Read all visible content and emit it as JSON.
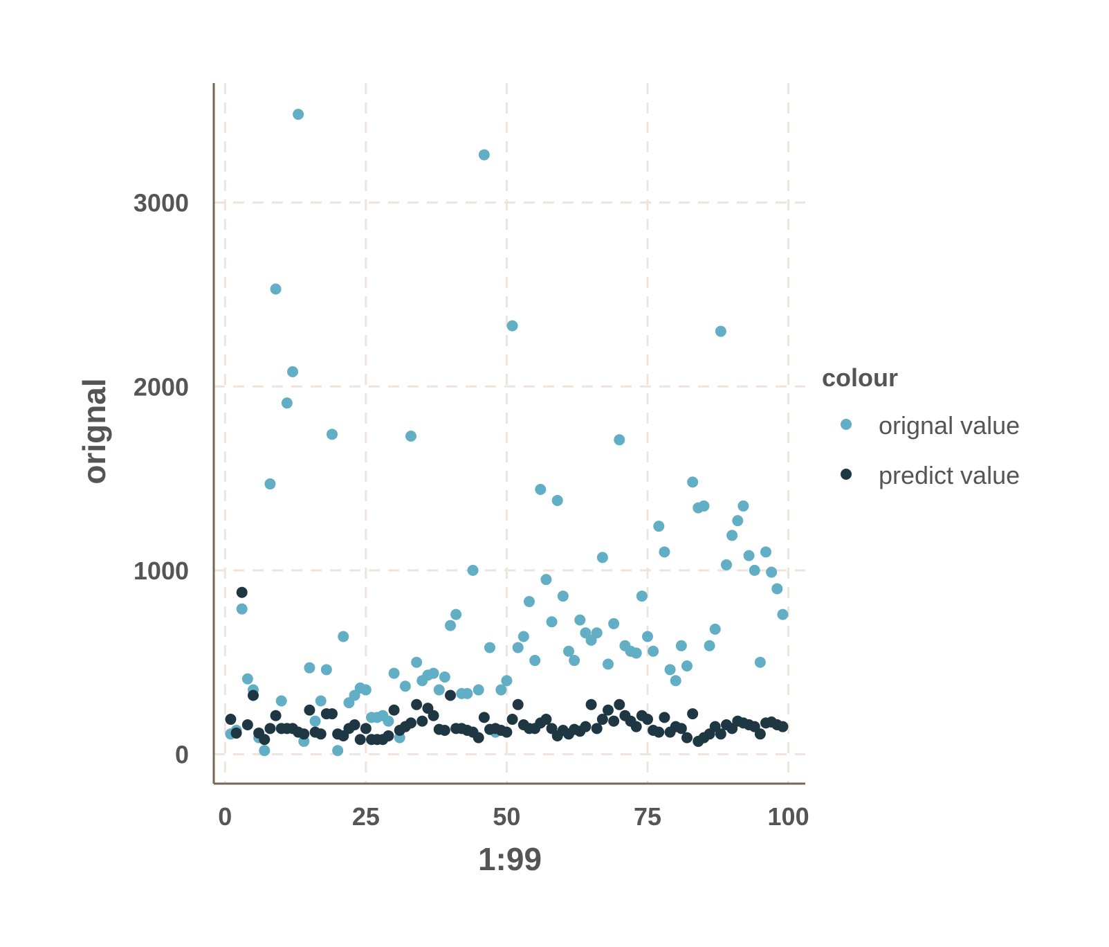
{
  "chart_data": {
    "type": "scatter",
    "xlabel": "1:99",
    "ylabel": "orignal",
    "xlim": [
      -2,
      103
    ],
    "ylim": [
      -160,
      3650
    ],
    "x_ticks": [
      0,
      25,
      50,
      75,
      100
    ],
    "x_tick_labels": [
      "0",
      "25",
      "50",
      "75",
      "100"
    ],
    "y_ticks": [
      0,
      1000,
      2000,
      3000
    ],
    "y_tick_labels": [
      "0",
      "1000",
      "2000",
      "3000"
    ],
    "grid": true,
    "legend": {
      "title": "colour",
      "position": "right"
    },
    "colors": {
      "orignal": "#62AEC5",
      "predict": "#1F3742",
      "axis": "#7A6650",
      "grid": "#EFE4DC",
      "text": "#555555"
    },
    "series": [
      {
        "name": "orignal value",
        "x": [
          1,
          2,
          3,
          4,
          5,
          6,
          7,
          8,
          9,
          10,
          11,
          12,
          13,
          14,
          15,
          16,
          17,
          18,
          19,
          20,
          21,
          22,
          23,
          24,
          25,
          26,
          27,
          28,
          29,
          30,
          31,
          32,
          33,
          34,
          35,
          36,
          37,
          38,
          39,
          40,
          41,
          42,
          43,
          44,
          45,
          46,
          47,
          48,
          49,
          50,
          51,
          52,
          53,
          54,
          55,
          56,
          57,
          58,
          59,
          60,
          61,
          62,
          63,
          64,
          65,
          66,
          67,
          68,
          69,
          70,
          71,
          72,
          73,
          74,
          75,
          76,
          77,
          78,
          79,
          80,
          81,
          82,
          83,
          84,
          85,
          86,
          87,
          88,
          89,
          90,
          91,
          92,
          93,
          94,
          95,
          96,
          97,
          98,
          99
        ],
        "values": [
          110,
          130,
          790,
          410,
          350,
          90,
          20,
          1470,
          2530,
          290,
          1910,
          2080,
          3480,
          70,
          470,
          180,
          290,
          460,
          1740,
          20,
          640,
          280,
          320,
          360,
          350,
          200,
          200,
          210,
          180,
          440,
          90,
          370,
          1730,
          500,
          400,
          430,
          440,
          350,
          420,
          700,
          760,
          330,
          330,
          1000,
          350,
          3260,
          580,
          120,
          350,
          400,
          2330,
          580,
          640,
          830,
          510,
          1440,
          950,
          720,
          1380,
          860,
          560,
          510,
          730,
          660,
          620,
          660,
          1070,
          490,
          710,
          1710,
          590,
          560,
          550,
          860,
          640,
          560,
          1240,
          1100,
          460,
          400,
          590,
          480,
          1480,
          1340,
          1350,
          590,
          680,
          2300,
          1030,
          1190,
          1270,
          1350,
          1080,
          1000,
          500,
          1100,
          990,
          900,
          760
        ]
      },
      {
        "name": "predict value",
        "x": [
          1,
          2,
          3,
          4,
          5,
          6,
          7,
          8,
          9,
          10,
          11,
          12,
          13,
          14,
          15,
          16,
          17,
          18,
          19,
          20,
          21,
          22,
          23,
          24,
          25,
          26,
          27,
          28,
          29,
          30,
          31,
          32,
          33,
          34,
          35,
          36,
          37,
          38,
          39,
          40,
          41,
          42,
          43,
          44,
          45,
          46,
          47,
          48,
          49,
          50,
          51,
          52,
          53,
          54,
          55,
          56,
          57,
          58,
          59,
          60,
          61,
          62,
          63,
          64,
          65,
          66,
          67,
          68,
          69,
          70,
          71,
          72,
          73,
          74,
          75,
          76,
          77,
          78,
          79,
          80,
          81,
          82,
          83,
          84,
          85,
          86,
          87,
          88,
          89,
          90,
          91,
          92,
          93,
          94,
          95,
          96,
          97,
          98,
          99
        ],
        "values": [
          190,
          115,
          880,
          160,
          320,
          115,
          80,
          140,
          210,
          140,
          140,
          140,
          120,
          110,
          240,
          120,
          110,
          220,
          220,
          110,
          100,
          140,
          160,
          80,
          140,
          80,
          80,
          80,
          100,
          240,
          130,
          150,
          170,
          270,
          180,
          250,
          210,
          135,
          130,
          320,
          140,
          140,
          130,
          120,
          90,
          200,
          135,
          140,
          130,
          120,
          190,
          270,
          160,
          140,
          140,
          170,
          190,
          140,
          100,
          130,
          110,
          135,
          125,
          150,
          270,
          140,
          190,
          240,
          180,
          270,
          210,
          180,
          150,
          210,
          190,
          130,
          120,
          200,
          120,
          150,
          140,
          90,
          220,
          70,
          90,
          110,
          150,
          110,
          160,
          140,
          180,
          170,
          160,
          150,
          110,
          170,
          175,
          160,
          150
        ]
      }
    ]
  }
}
